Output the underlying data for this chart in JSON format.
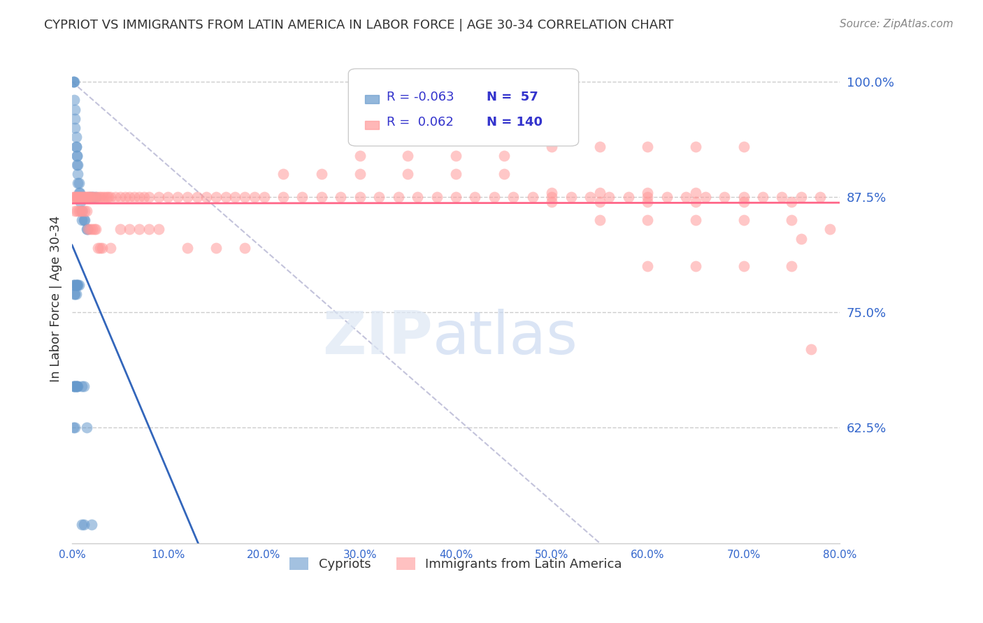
{
  "title": "CYPRIOT VS IMMIGRANTS FROM LATIN AMERICA IN LABOR FORCE | AGE 30-34 CORRELATION CHART",
  "source": "Source: ZipAtlas.com",
  "ylabel": "In Labor Force | Age 30-34",
  "x_min": 0.0,
  "x_max": 0.8,
  "y_min": 0.5,
  "y_max": 1.03,
  "yticks": [
    0.625,
    0.75,
    0.875,
    1.0
  ],
  "ytick_labels": [
    "62.5%",
    "75.0%",
    "87.5%",
    "100.0%"
  ],
  "xticks": [
    0.0,
    0.1,
    0.2,
    0.3,
    0.4,
    0.5,
    0.6,
    0.7,
    0.8
  ],
  "grid_color": "#cccccc",
  "background_color": "#ffffff",
  "blue_color": "#6699cc",
  "pink_color": "#ff9999",
  "blue_line_color": "#3366bb",
  "pink_line_color": "#ff6688",
  "legend_R_blue": "-0.063",
  "legend_N_blue": "57",
  "legend_R_pink": "0.062",
  "legend_N_pink": "140",
  "legend_label_blue": "Cypriots",
  "legend_label_pink": "Immigrants from Latin America",
  "blue_scatter_x": [
    0.001,
    0.001,
    0.002,
    0.002,
    0.003,
    0.003,
    0.004,
    0.004,
    0.005,
    0.005,
    0.006,
    0.006,
    0.007,
    0.007,
    0.008,
    0.009,
    0.01,
    0.01,
    0.012,
    0.013,
    0.015,
    0.016,
    0.018,
    0.02,
    0.022,
    0.025,
    0.003,
    0.004,
    0.005,
    0.006,
    0.002,
    0.003,
    0.004,
    0.005,
    0.001,
    0.003,
    0.005,
    0.01,
    0.012,
    0.015,
    0.001,
    0.002,
    0.003,
    0.004,
    0.005,
    0.006,
    0.007,
    0.002,
    0.003,
    0.004,
    0.005,
    0.006,
    0.001,
    0.003,
    0.01,
    0.012,
    0.02
  ],
  "blue_scatter_y": [
    1.0,
    1.0,
    1.0,
    0.98,
    0.97,
    0.96,
    0.94,
    0.93,
    0.92,
    0.91,
    0.9,
    0.89,
    0.89,
    0.88,
    0.88,
    0.87,
    0.86,
    0.85,
    0.85,
    0.85,
    0.84,
    0.84,
    0.875,
    0.875,
    0.875,
    0.875,
    0.95,
    0.93,
    0.92,
    0.91,
    0.77,
    0.77,
    0.77,
    0.78,
    0.67,
    0.67,
    0.67,
    0.67,
    0.67,
    0.625,
    0.78,
    0.78,
    0.78,
    0.78,
    0.78,
    0.78,
    0.78,
    0.67,
    0.67,
    0.67,
    0.67,
    0.67,
    0.625,
    0.625,
    0.52,
    0.52,
    0.52
  ],
  "pink_scatter_x": [
    0.001,
    0.002,
    0.003,
    0.004,
    0.005,
    0.006,
    0.007,
    0.008,
    0.009,
    0.01,
    0.011,
    0.012,
    0.013,
    0.014,
    0.015,
    0.016,
    0.017,
    0.018,
    0.019,
    0.02,
    0.022,
    0.024,
    0.026,
    0.028,
    0.03,
    0.032,
    0.034,
    0.036,
    0.038,
    0.04,
    0.045,
    0.05,
    0.055,
    0.06,
    0.065,
    0.07,
    0.075,
    0.08,
    0.09,
    0.1,
    0.11,
    0.12,
    0.13,
    0.14,
    0.15,
    0.16,
    0.17,
    0.18,
    0.19,
    0.2,
    0.22,
    0.24,
    0.26,
    0.28,
    0.3,
    0.32,
    0.34,
    0.36,
    0.38,
    0.4,
    0.42,
    0.44,
    0.46,
    0.48,
    0.5,
    0.52,
    0.54,
    0.56,
    0.58,
    0.6,
    0.62,
    0.64,
    0.66,
    0.68,
    0.7,
    0.72,
    0.74,
    0.76,
    0.78,
    0.003,
    0.005,
    0.007,
    0.009,
    0.011,
    0.013,
    0.015,
    0.017,
    0.019,
    0.021,
    0.023,
    0.025,
    0.027,
    0.029,
    0.031,
    0.04,
    0.05,
    0.06,
    0.07,
    0.08,
    0.09,
    0.12,
    0.15,
    0.18,
    0.22,
    0.26,
    0.3,
    0.35,
    0.4,
    0.45,
    0.5,
    0.55,
    0.6,
    0.65,
    0.7,
    0.75,
    0.3,
    0.35,
    0.4,
    0.45,
    0.5,
    0.55,
    0.6,
    0.65,
    0.5,
    0.55,
    0.6,
    0.65,
    0.7,
    0.55,
    0.6,
    0.65,
    0.7,
    0.75,
    0.6,
    0.65,
    0.7,
    0.75,
    0.76,
    0.77,
    0.79
  ],
  "pink_scatter_y": [
    0.875,
    0.875,
    0.875,
    0.875,
    0.875,
    0.875,
    0.875,
    0.875,
    0.875,
    0.875,
    0.875,
    0.875,
    0.875,
    0.875,
    0.875,
    0.875,
    0.875,
    0.875,
    0.875,
    0.875,
    0.875,
    0.875,
    0.875,
    0.875,
    0.875,
    0.875,
    0.875,
    0.875,
    0.875,
    0.875,
    0.875,
    0.875,
    0.875,
    0.875,
    0.875,
    0.875,
    0.875,
    0.875,
    0.875,
    0.875,
    0.875,
    0.875,
    0.875,
    0.875,
    0.875,
    0.875,
    0.875,
    0.875,
    0.875,
    0.875,
    0.875,
    0.875,
    0.875,
    0.875,
    0.875,
    0.875,
    0.875,
    0.875,
    0.875,
    0.875,
    0.875,
    0.875,
    0.875,
    0.875,
    0.875,
    0.875,
    0.875,
    0.875,
    0.875,
    0.875,
    0.875,
    0.875,
    0.875,
    0.875,
    0.875,
    0.875,
    0.875,
    0.875,
    0.875,
    0.86,
    0.86,
    0.86,
    0.86,
    0.86,
    0.86,
    0.86,
    0.84,
    0.84,
    0.84,
    0.84,
    0.84,
    0.82,
    0.82,
    0.82,
    0.82,
    0.84,
    0.84,
    0.84,
    0.84,
    0.84,
    0.82,
    0.82,
    0.82,
    0.9,
    0.9,
    0.9,
    0.9,
    0.9,
    0.9,
    0.87,
    0.87,
    0.87,
    0.87,
    0.87,
    0.87,
    0.92,
    0.92,
    0.92,
    0.92,
    0.88,
    0.88,
    0.88,
    0.88,
    0.93,
    0.93,
    0.93,
    0.93,
    0.93,
    0.85,
    0.85,
    0.85,
    0.85,
    0.85,
    0.8,
    0.8,
    0.8,
    0.8,
    0.83,
    0.71,
    0.84
  ]
}
